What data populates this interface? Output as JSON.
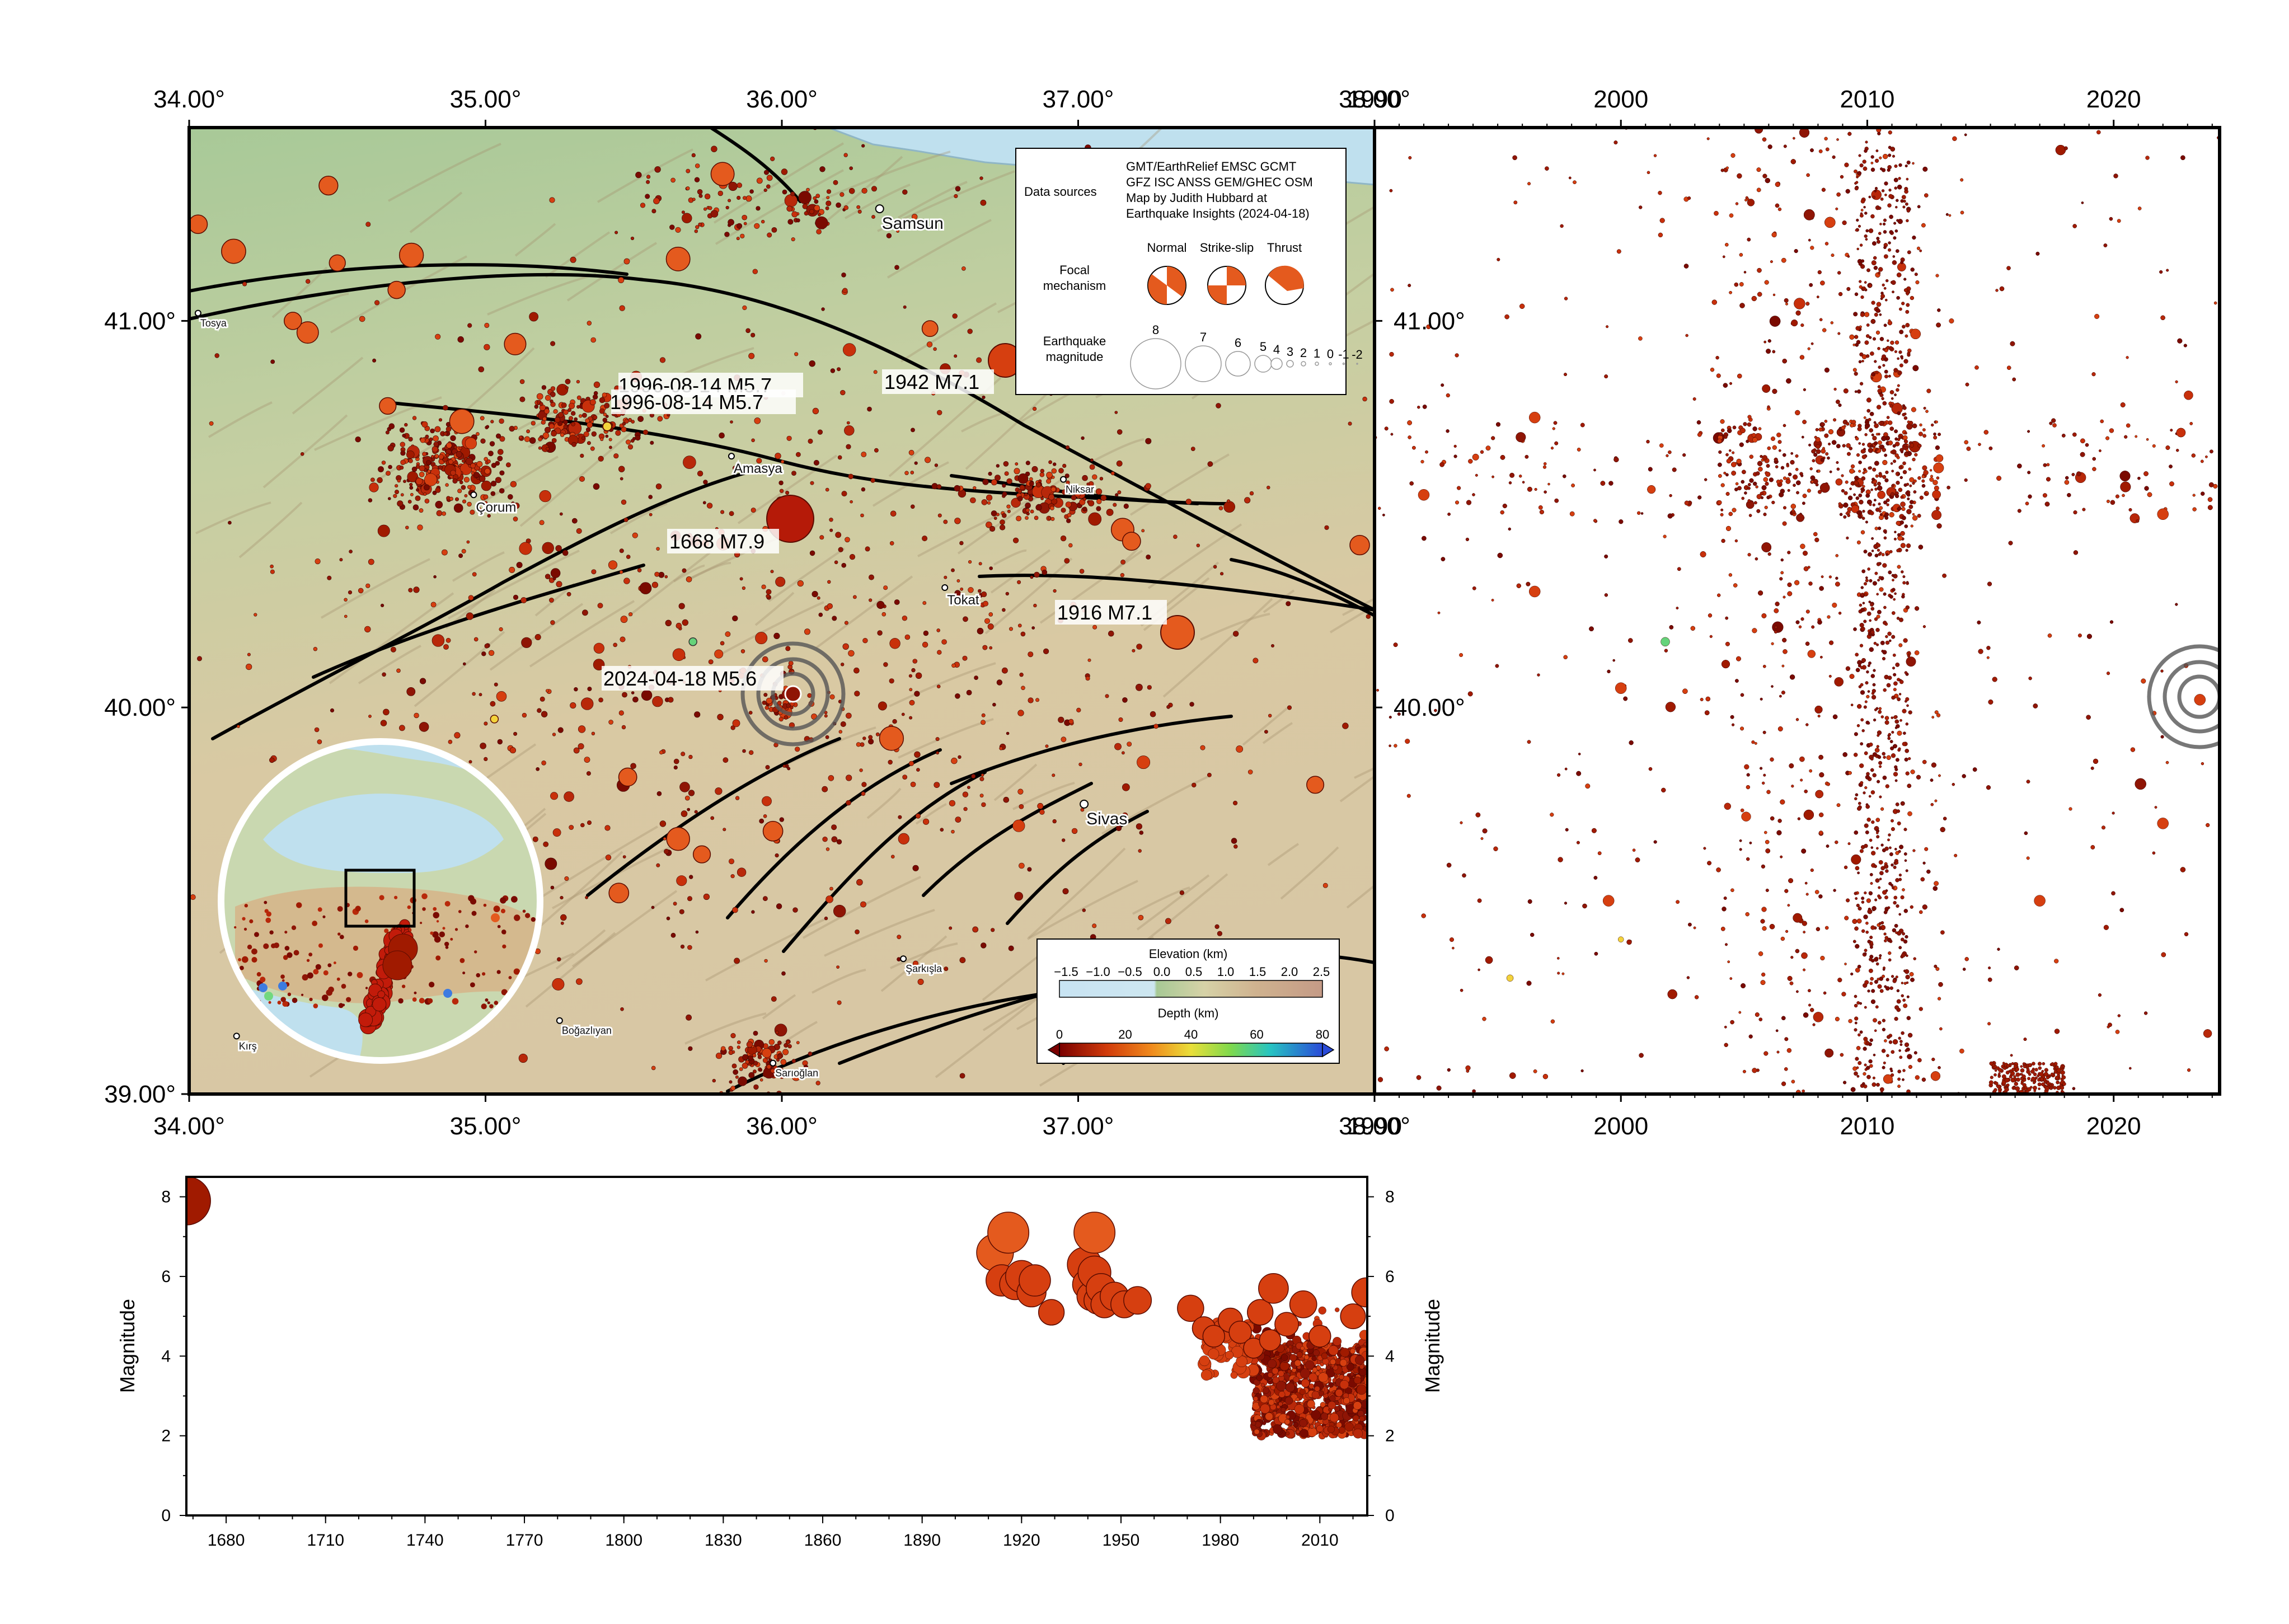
{
  "map": {
    "lon_ticks": [
      "34.00°",
      "35.00°",
      "36.00°",
      "37.00°",
      "38.00°"
    ],
    "lat_ticks": [
      "41.00°",
      "40.00°",
      "39.00°"
    ],
    "extent": {
      "lon": [
        34,
        38
      ],
      "lat": [
        39,
        41.5
      ]
    },
    "cities": [
      {
        "name": "Samsun",
        "lon": 36.33,
        "lat": 41.29,
        "size": "large"
      },
      {
        "name": "Tosya",
        "lon": 34.03,
        "lat": 41.02,
        "size": "small"
      },
      {
        "name": "Çorum",
        "lon": 34.96,
        "lat": 40.55,
        "size": "medium"
      },
      {
        "name": "Amasya",
        "lon": 35.83,
        "lat": 40.65,
        "size": "medium"
      },
      {
        "name": "Niksar",
        "lon": 36.95,
        "lat": 40.59,
        "size": "small"
      },
      {
        "name": "Tokat",
        "lon": 36.55,
        "lat": 40.31,
        "size": "medium"
      },
      {
        "name": "Sivas",
        "lon": 37.02,
        "lat": 39.75,
        "size": "large"
      },
      {
        "name": "Şarkışla",
        "lon": 36.41,
        "lat": 39.35,
        "size": "small"
      },
      {
        "name": "Boğazlıyan",
        "lon": 35.25,
        "lat": 39.19,
        "size": "small"
      },
      {
        "name": "Sarıoğlan",
        "lon": 35.97,
        "lat": 39.08,
        "size": "small"
      },
      {
        "name": "Kırş",
        "lon": 34.16,
        "lat": 39.15,
        "size": "small"
      }
    ],
    "historic_quakes": [
      {
        "label": "1996-08-14 M5.7",
        "lon": 35.4,
        "lat": 40.72
      },
      {
        "label": "1996-08-14 M5.7",
        "lon": 35.4,
        "lat": 40.72
      },
      {
        "label": "1942 M7.1",
        "lon": 36.73,
        "lat": 40.89
      },
      {
        "label": "1668 M7.9",
        "lon": 36.0,
        "lat": 40.48
      },
      {
        "label": "1916 M7.1",
        "lon": 37.32,
        "lat": 40.19
      },
      {
        "label": "2024-04-18 M5.6",
        "lon": 36.01,
        "lat": 40.02
      }
    ],
    "legend": {
      "data_sources_label": "Data sources",
      "data_sources_lines": [
        "GMT/EarthRelief EMSC GCMT",
        "GFZ ISC ANSS GEM/GHEC OSM",
        "Map by Judith Hubbard at",
        "Earthquake Insights (2024-04-18)"
      ],
      "focal_label_1": "Focal",
      "focal_label_2": "mechanism",
      "focal_types": [
        "Normal",
        "Strike-slip",
        "Thrust"
      ],
      "magnitude_label_1": "Earthquake",
      "magnitude_label_2": "magnitude",
      "magnitudes": [
        "8",
        "7",
        "6",
        "5",
        "4",
        "3",
        "2",
        "1",
        "0",
        "-1",
        "-2"
      ]
    },
    "colorbars": {
      "elevation_title": "Elevation (km)",
      "elevation_ticks": [
        "−1.5",
        "−1.0",
        "−0.5",
        "0.0",
        "0.5",
        "1.0",
        "1.5",
        "2.0",
        "2.5"
      ],
      "depth_title": "Depth (km)",
      "depth_ticks": [
        "0",
        "20",
        "40",
        "60",
        "80"
      ]
    }
  },
  "time_panel": {
    "year_ticks": [
      "1990",
      "2000",
      "2010",
      "2020"
    ],
    "lat_ticks": [
      "41.00°",
      "40.00°"
    ],
    "xlim": [
      1990,
      2024.3
    ]
  },
  "chart_data": {
    "type": "scatter",
    "xlabel": "",
    "ylabel": "Magnitude",
    "xlim": [
      1668,
      2024.3
    ],
    "ylim": [
      0,
      8.5
    ],
    "x_ticks": [
      "1680",
      "1710",
      "1740",
      "1770",
      "1800",
      "1830",
      "1860",
      "1890",
      "1920",
      "1950",
      "1980",
      "2010"
    ],
    "y_ticks": [
      "0",
      "2",
      "4",
      "6",
      "8"
    ],
    "points": [
      {
        "x": 1668,
        "y": 7.9
      },
      {
        "x": 1912,
        "y": 6.6
      },
      {
        "x": 1916,
        "y": 7.1
      },
      {
        "x": 1914,
        "y": 5.9
      },
      {
        "x": 1918,
        "y": 5.8
      },
      {
        "x": 1920,
        "y": 6.0
      },
      {
        "x": 1923,
        "y": 5.6
      },
      {
        "x": 1924,
        "y": 5.9
      },
      {
        "x": 1929,
        "y": 5.1
      },
      {
        "x": 1939,
        "y": 6.3
      },
      {
        "x": 1940,
        "y": 5.8
      },
      {
        "x": 1941,
        "y": 5.5
      },
      {
        "x": 1942,
        "y": 7.1
      },
      {
        "x": 1942,
        "y": 6.1
      },
      {
        "x": 1943,
        "y": 5.4
      },
      {
        "x": 1944,
        "y": 5.7
      },
      {
        "x": 1945,
        "y": 5.3
      },
      {
        "x": 1948,
        "y": 5.5
      },
      {
        "x": 1951,
        "y": 5.3
      },
      {
        "x": 1955,
        "y": 5.4
      },
      {
        "x": 1971,
        "y": 5.2
      },
      {
        "x": 1975,
        "y": 4.7
      },
      {
        "x": 1978,
        "y": 4.5
      },
      {
        "x": 1983,
        "y": 4.9
      },
      {
        "x": 1986,
        "y": 4.6
      },
      {
        "x": 1990,
        "y": 4.2
      },
      {
        "x": 1992,
        "y": 5.1
      },
      {
        "x": 1995,
        "y": 4.4
      },
      {
        "x": 1996,
        "y": 5.7
      },
      {
        "x": 2000,
        "y": 4.8
      },
      {
        "x": 2005,
        "y": 5.3
      },
      {
        "x": 2010,
        "y": 4.5
      },
      {
        "x": 2020,
        "y": 5.0
      },
      {
        "x": 2024,
        "y": 5.6
      }
    ]
  },
  "colors": {
    "water": "#bfe0ee",
    "lowland": "#b9d2a1",
    "highland": "#d8c4a3",
    "quake_shallow": "#a01a00",
    "quake_mid": "#e45a1e",
    "fault": "#000000"
  }
}
